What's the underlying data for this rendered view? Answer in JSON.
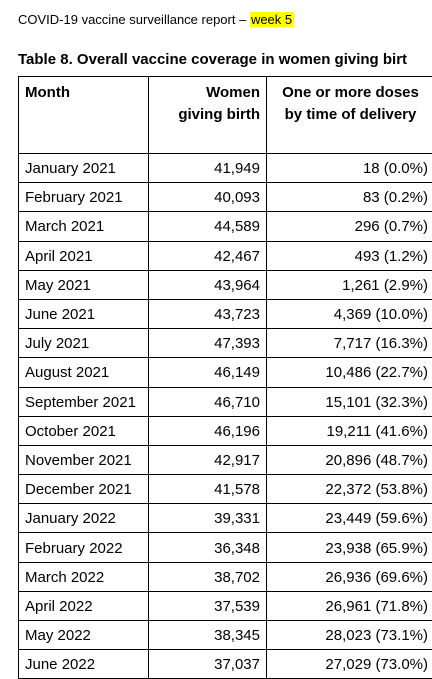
{
  "header": {
    "report_text": "COVID-19 vaccine surveillance report – ",
    "week_text": "week 5"
  },
  "table": {
    "title": "Table 8. Overall vaccine coverage in women giving birt",
    "columns": {
      "month": "Month",
      "women_line1": "Women",
      "women_line2": "giving birth",
      "dose_line1": "One or more doses",
      "dose_line2": "by time of delivery"
    },
    "rows": [
      {
        "month": "January 2021",
        "women": "41,949",
        "doses": "18 (0.0%)"
      },
      {
        "month": "February 2021",
        "women": "40,093",
        "doses": "83 (0.2%)"
      },
      {
        "month": "March 2021",
        "women": "44,589",
        "doses": "296 (0.7%)"
      },
      {
        "month": "April 2021",
        "women": "42,467",
        "doses": "493 (1.2%)"
      },
      {
        "month": "May 2021",
        "women": "43,964",
        "doses": "1,261 (2.9%)"
      },
      {
        "month": "June 2021",
        "women": "43,723",
        "doses": "4,369 (10.0%)"
      },
      {
        "month": "July 2021",
        "women": "47,393",
        "doses": "7,717 (16.3%)"
      },
      {
        "month": "August 2021",
        "women": "46,149",
        "doses": "10,486 (22.7%)"
      },
      {
        "month": "September 2021",
        "women": "46,710",
        "doses": "15,101 (32.3%)"
      },
      {
        "month": "October 2021",
        "women": "46,196",
        "doses": "19,211 (41.6%)"
      },
      {
        "month": "November 2021",
        "women": "42,917",
        "doses": "20,896 (48.7%)"
      },
      {
        "month": "December 2021",
        "women": "41,578",
        "doses": "22,372 (53.8%)"
      },
      {
        "month": "January 2022",
        "women": "39,331",
        "doses": "23,449 (59.6%)"
      },
      {
        "month": "February 2022",
        "women": "36,348",
        "doses": "23,938 (65.9%)"
      },
      {
        "month": "March 2022",
        "women": "38,702",
        "doses": "26,936 (69.6%)"
      },
      {
        "month": "April 2022",
        "women": "37,539",
        "doses": "26,961 (71.8%)"
      },
      {
        "month": "May 2022",
        "women": "38,345",
        "doses": "28,023 (73.1%)"
      },
      {
        "month": "June 2022",
        "women": "37,037",
        "doses": "27,029 (73.0%)"
      }
    ]
  }
}
